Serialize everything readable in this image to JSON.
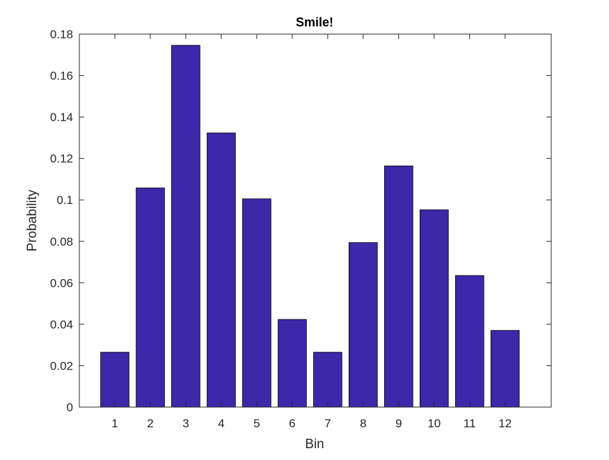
{
  "chart_data": {
    "type": "bar",
    "title": "Smile!",
    "xlabel": "Bin",
    "ylabel": "Probability",
    "categories": [
      "1",
      "2",
      "3",
      "4",
      "5",
      "6",
      "7",
      "8",
      "9",
      "10",
      "11",
      "12"
    ],
    "values": [
      0.0265,
      0.1058,
      0.1746,
      0.1323,
      0.1005,
      0.0423,
      0.0265,
      0.0794,
      0.1164,
      0.0952,
      0.0635,
      0.037
    ],
    "xlim": [
      0,
      13.3
    ],
    "ylim": [
      0,
      0.18
    ],
    "yticks": [
      "0",
      "0.02",
      "0.04",
      "0.06",
      "0.08",
      "0.1",
      "0.12",
      "0.14",
      "0.16",
      "0.18"
    ],
    "bar_color": "#3c28a8",
    "grid": false,
    "legend": "none"
  }
}
